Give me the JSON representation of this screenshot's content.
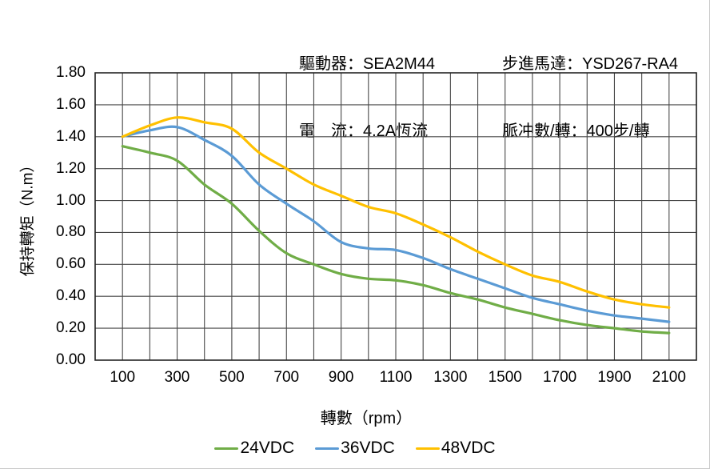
{
  "header": {
    "driver_label": "驅動器：SEA2M44",
    "current_label": "電　流：4.2A恆流",
    "motor_label": "步進馬達：YSD267-RA4",
    "pulses_label": "脈冲數/轉：400步/轉"
  },
  "chart_data": {
    "type": "line",
    "title": "",
    "xlabel": "轉數（rpm）",
    "ylabel": "保持轉矩（N.m）",
    "xlim": [
      0,
      2200
    ],
    "ylim": [
      0,
      1.8
    ],
    "grid": true,
    "x_gridline_step": 100,
    "y_gridline_step": 0.2,
    "grid_color": "#474747",
    "border_color": "#242424",
    "legend_position": "bottom",
    "x_tick_values": [
      100,
      300,
      500,
      700,
      900,
      1100,
      1300,
      1500,
      1700,
      1900,
      2100
    ],
    "x_tick_labels": [
      "100",
      "300",
      "500",
      "700",
      "900",
      "1100",
      "1300",
      "1500",
      "1700",
      "1900",
      "2100"
    ],
    "y_tick_values": [
      0,
      0.2,
      0.4,
      0.6,
      0.8,
      1.0,
      1.2,
      1.4,
      1.6,
      1.8
    ],
    "y_tick_labels": [
      "0.00",
      "0.20",
      "0.40",
      "0.60",
      "0.80",
      "1.00",
      "1.20",
      "1.40",
      "1.60",
      "1.80"
    ],
    "x": [
      100,
      200,
      300,
      400,
      500,
      600,
      700,
      800,
      900,
      1000,
      1100,
      1200,
      1300,
      1400,
      1500,
      1600,
      1700,
      1800,
      1900,
      2000,
      2100
    ],
    "series": [
      {
        "name": "24VDC",
        "color": "#70AD47",
        "values": [
          1.34,
          1.3,
          1.25,
          1.1,
          0.98,
          0.81,
          0.67,
          0.6,
          0.54,
          0.51,
          0.5,
          0.47,
          0.42,
          0.38,
          0.33,
          0.29,
          0.25,
          0.22,
          0.2,
          0.18,
          0.17
        ]
      },
      {
        "name": "36VDC",
        "color": "#5B9BD5",
        "values": [
          1.4,
          1.44,
          1.46,
          1.38,
          1.28,
          1.1,
          0.98,
          0.87,
          0.74,
          0.7,
          0.69,
          0.64,
          0.57,
          0.51,
          0.45,
          0.39,
          0.35,
          0.31,
          0.28,
          0.26,
          0.24
        ]
      },
      {
        "name": "48VDC",
        "color": "#FFC000",
        "values": [
          1.4,
          1.47,
          1.52,
          1.49,
          1.45,
          1.3,
          1.2,
          1.1,
          1.03,
          0.96,
          0.92,
          0.85,
          0.77,
          0.68,
          0.6,
          0.53,
          0.49,
          0.43,
          0.38,
          0.35,
          0.33
        ]
      }
    ]
  }
}
